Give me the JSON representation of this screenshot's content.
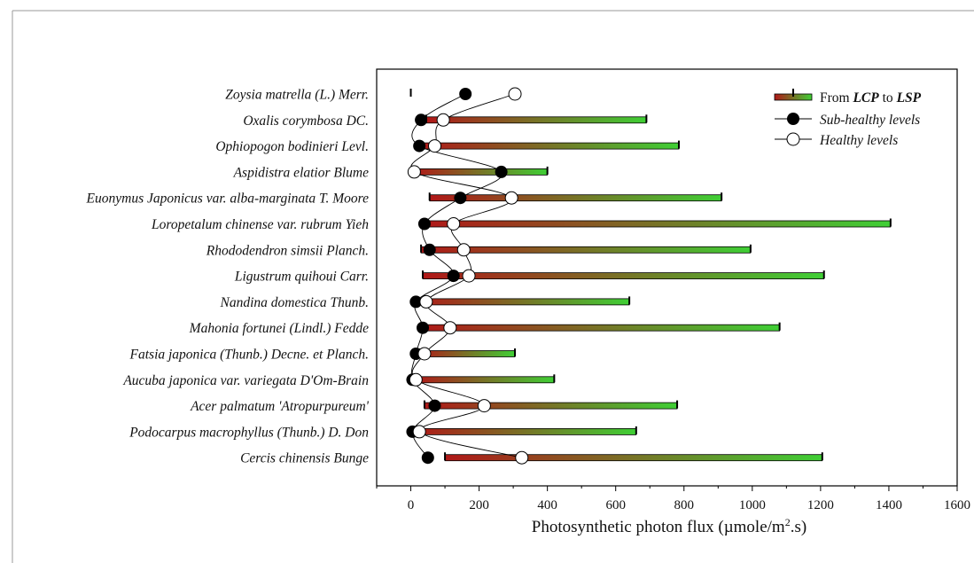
{
  "chart_data": {
    "type": "scatter",
    "title": "",
    "xlabel": "Photosynthetic photon flux (µmole/m².s)",
    "xlabel_parts": {
      "main": "Photosynthetic photon flux (µmole/m",
      "superscript": "2",
      "after": ".s)"
    },
    "ylabel": "",
    "xlim": [
      -100,
      1600
    ],
    "xticks": [
      0,
      200,
      400,
      600,
      800,
      1000,
      1200,
      1400,
      1600
    ],
    "grid": false,
    "legend": {
      "placement": "top-right",
      "range_prefix": "From ",
      "range_lcp": "LCP",
      "range_mid": " to ",
      "range_lsp": "LSP",
      "subhealthy": "Sub-healthy levels",
      "healthy": "Healthy levels"
    },
    "colors": {
      "range_start": "#b01818",
      "range_end": "#3fcf35",
      "subhealthy": "#000000",
      "healthy": "#ffffff"
    },
    "categories": [
      "Zoysia matrella (L.) Merr.",
      "Oxalis corymbosa DC.",
      "Ophiopogon bodinieri Levl.",
      "Aspidistra elatior Blume",
      "Euonymus Japonicus var. alba-marginata T. Moore",
      "Loropetalum chinense var. rubrum Yieh",
      "Rhododendron simsii Planch.",
      "Ligustrum quihoui Carr.",
      "Nandina domestica Thunb.",
      "Mahonia fortunei (Lindl.) Fedde",
      "Fatsia japonica (Thunb.) Decne. et Planch.",
      "Aucuba japonica var. variegata D'Om-Brain",
      "Acer palmatum 'Atropurpureum'",
      "Podocarpus macrophyllus (Thunb.) D. Don",
      "Cercis chinensis Bunge"
    ],
    "series": [
      {
        "name": "From LCP to LSP",
        "type": "range",
        "lcp": [
          0,
          45,
          30,
          10,
          55,
          40,
          30,
          35,
          15,
          30,
          25,
          15,
          40,
          10,
          100
        ],
        "lsp": [
          0,
          690,
          785,
          400,
          910,
          1405,
          995,
          1210,
          640,
          1080,
          305,
          420,
          780,
          660,
          1205
        ]
      },
      {
        "name": "Sub-healthy levels",
        "values": [
          160,
          30,
          25,
          265,
          145,
          40,
          55,
          125,
          15,
          35,
          15,
          5,
          70,
          5,
          50
        ]
      },
      {
        "name": "Healthy levels",
        "values": [
          305,
          95,
          70,
          10,
          295,
          125,
          155,
          170,
          45,
          115,
          40,
          15,
          215,
          25,
          325
        ]
      }
    ]
  }
}
